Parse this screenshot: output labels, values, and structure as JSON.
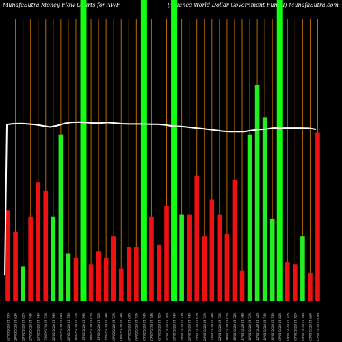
{
  "header": {
    "title_left": "MunafaSutra  Money Flow  Charts for AWF",
    "title_right": "(Alliance   World Dollar Government Fund I)  MunafaSutra.com"
  },
  "colors": {
    "background": "#000000",
    "up": "#22ee22",
    "down": "#ee1111",
    "gridline": "#b86a00",
    "price_line": "#ffffff",
    "highlight": "#11ff11",
    "label": "#d8d8d8"
  },
  "chart_data": {
    "type": "bar",
    "title": "MunafaSutra  Money Flow  Charts for AWF",
    "ylim": [
      0,
      100
    ],
    "categories": [
      "01/03/2024 11.73%",
      "29/02/2024 11.62%",
      "28/02/2024 11.62%",
      "27/02/2024 11.74%",
      "26/02/2024 11.74%",
      "23/02/2024 11.71%",
      "22/02/2024 11.74%",
      "21/02/2024 11.69%",
      "20/02/2024 11.73%",
      "16/02/2024 11.71%",
      "15/02/2024 11.74%",
      "14/02/2024 11.62%",
      "13/02/2024 11.72%",
      "12/02/2024 11.74%",
      "09/02/2024 11.71%",
      "08/02/2024 11.74%",
      "07/02/2024 11.69%",
      "06/02/2024 11.71%",
      "05/02/2024 11.74%",
      "02/02/2024 11.74%",
      "01/02/2024 11.72%",
      "31/01/2024 11.70%",
      "30/01/2024 11.74%",
      "29/01/2024 11.73%",
      "26/01/2024 11.74%",
      "25/01/2024 11.62%",
      "24/01/2024 11.71%",
      "23/01/2024 11.74%",
      "22/01/2024 11.73%",
      "19/01/2024 11.62%",
      "18/01/2024 11.72%",
      "17/01/2024 11.74%",
      "16/01/2024 11.71%",
      "12/01/2024 11.72%",
      "11/01/2024 11.74%",
      "10/01/2024 11.73%",
      "09/01/2024 11.62%",
      "08/01/2024 11.71%",
      "05/01/2024 11.72%",
      "04/01/2024 11.74%",
      "03/01/2024 11.66%",
      "02/01/2024 12.09%"
    ],
    "values": [
      42,
      32,
      16,
      39,
      55,
      51,
      39,
      77,
      22,
      20,
      100,
      17,
      23,
      20,
      30,
      15,
      25,
      25,
      100,
      39,
      26,
      44,
      100,
      40,
      40,
      58,
      30,
      47,
      40,
      31,
      56,
      14,
      77,
      100,
      85,
      38,
      100,
      18,
      17,
      30,
      13,
      78
    ],
    "directions": [
      "down",
      "down",
      "up",
      "down",
      "down",
      "down",
      "up",
      "up",
      "up",
      "down",
      "up",
      "down",
      "down",
      "down",
      "down",
      "down",
      "down",
      "down",
      "up",
      "down",
      "down",
      "down",
      "up",
      "up",
      "down",
      "down",
      "down",
      "down",
      "down",
      "down",
      "down",
      "down",
      "up",
      "up",
      "up",
      "up",
      "up",
      "down",
      "down",
      "up",
      "down",
      "down"
    ],
    "highlighted": [
      false,
      false,
      false,
      false,
      false,
      false,
      false,
      false,
      false,
      false,
      true,
      false,
      false,
      false,
      false,
      false,
      false,
      false,
      true,
      false,
      false,
      false,
      true,
      false,
      false,
      false,
      false,
      false,
      false,
      false,
      false,
      false,
      false,
      false,
      false,
      false,
      true,
      false,
      false,
      false,
      false,
      false
    ],
    "price_line": [
      100,
      100.3,
      100.4,
      100.2,
      99.9,
      99.4,
      98.9,
      99.5,
      100.4,
      100.9,
      101,
      100.8,
      100.6,
      100.6,
      100.8,
      100.6,
      100.3,
      100.2,
      100.2,
      100.2,
      100.1,
      100.1,
      99.8,
      99.3,
      99.2,
      98.9,
      98.5,
      98.2,
      97.8,
      97.4,
      97,
      96.8,
      96.8,
      96.8,
      97.3,
      97.7,
      97.9,
      98.4,
      98.4,
      98.4,
      98.4,
      98.4,
      98.3,
      97.8
    ],
    "price_start": 20,
    "grid": true
  }
}
